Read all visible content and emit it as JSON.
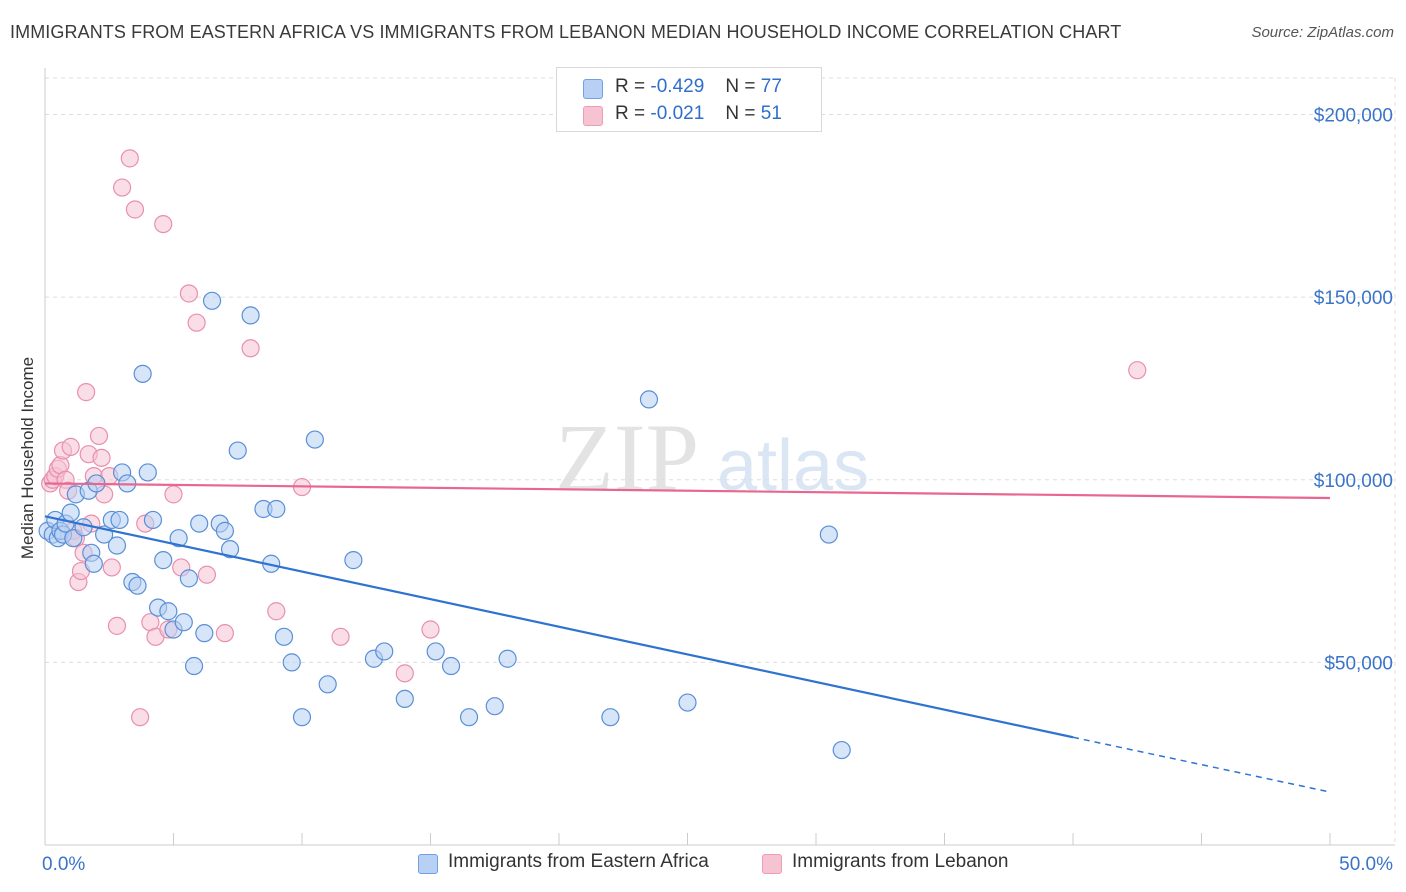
{
  "title": "IMMIGRANTS FROM EASTERN AFRICA VS IMMIGRANTS FROM LEBANON MEDIAN HOUSEHOLD INCOME CORRELATION CHART",
  "source": "Source: ZipAtlas.com",
  "watermark": {
    "zip": "ZIP",
    "atlas": "atlas"
  },
  "legend": {
    "r_label": "R =",
    "n_label": "N =",
    "rows": [
      {
        "r": "-0.429",
        "n": "77",
        "color": "#6fa0e8"
      },
      {
        "r": "-0.021",
        "n": "51",
        "color": "#f09ab6"
      }
    ]
  },
  "colors": {
    "blue_fill": "#b7d0f4",
    "blue_stroke": "#5a8fd6",
    "blue_line": "#2f73d1",
    "pink_fill": "#f6c3d3",
    "pink_stroke": "#e98fae",
    "pink_line": "#e8678f",
    "axis_label": "#3a74c9",
    "grid": "#dddddd"
  },
  "chart_data": {
    "type": "scatter",
    "title": "IMMIGRANTS FROM EASTERN AFRICA VS IMMIGRANTS FROM LEBANON MEDIAN HOUSEHOLD INCOME CORRELATION CHART",
    "xlabel": "",
    "ylabel": "Median Household Income",
    "xlim": [
      0,
      50
    ],
    "ylim": [
      0,
      210000
    ],
    "x_tick_labels": [
      "0.0%",
      "50.0%"
    ],
    "y_ticks": [
      50000,
      100000,
      150000,
      200000
    ],
    "y_tick_labels": [
      "$50,000",
      "$100,000",
      "$150,000",
      "$200,000"
    ],
    "grid": true,
    "legend_position": "top-center",
    "series": [
      {
        "name": "Immigrants from Eastern Africa",
        "r": -0.429,
        "n": 77,
        "trend": {
          "x0": 0,
          "y0": 90000,
          "x1": 40,
          "y1": 29500,
          "dashed_to_x": 50,
          "dashed_to_y": 14500
        },
        "points": [
          [
            0.1,
            86000
          ],
          [
            0.3,
            85000
          ],
          [
            0.4,
            89000
          ],
          [
            0.5,
            84000
          ],
          [
            0.6,
            86000
          ],
          [
            0.7,
            85000
          ],
          [
            0.8,
            88000
          ],
          [
            1.0,
            91000
          ],
          [
            1.1,
            84000
          ],
          [
            1.2,
            96000
          ],
          [
            1.5,
            87000
          ],
          [
            1.7,
            97000
          ],
          [
            1.8,
            80000
          ],
          [
            1.9,
            77000
          ],
          [
            2.0,
            99000
          ],
          [
            2.3,
            85000
          ],
          [
            2.6,
            89000
          ],
          [
            2.8,
            82000
          ],
          [
            2.9,
            89000
          ],
          [
            3.0,
            102000
          ],
          [
            3.2,
            99000
          ],
          [
            3.4,
            72000
          ],
          [
            3.6,
            71000
          ],
          [
            3.8,
            129000
          ],
          [
            4.0,
            102000
          ],
          [
            4.2,
            89000
          ],
          [
            4.4,
            65000
          ],
          [
            4.6,
            78000
          ],
          [
            4.8,
            64000
          ],
          [
            5.0,
            59000
          ],
          [
            5.2,
            84000
          ],
          [
            5.4,
            61000
          ],
          [
            5.6,
            73000
          ],
          [
            5.8,
            49000
          ],
          [
            6.0,
            88000
          ],
          [
            6.2,
            58000
          ],
          [
            6.5,
            149000
          ],
          [
            6.8,
            88000
          ],
          [
            7.0,
            86000
          ],
          [
            7.2,
            81000
          ],
          [
            7.5,
            108000
          ],
          [
            8.0,
            145000
          ],
          [
            8.5,
            92000
          ],
          [
            8.8,
            77000
          ],
          [
            9.0,
            92000
          ],
          [
            9.3,
            57000
          ],
          [
            9.6,
            50000
          ],
          [
            10.0,
            35000
          ],
          [
            10.5,
            111000
          ],
          [
            11.0,
            44000
          ],
          [
            12.0,
            78000
          ],
          [
            12.8,
            51000
          ],
          [
            13.2,
            53000
          ],
          [
            14.0,
            40000
          ],
          [
            15.2,
            53000
          ],
          [
            15.8,
            49000
          ],
          [
            16.5,
            35000
          ],
          [
            17.5,
            38000
          ],
          [
            18.0,
            51000
          ],
          [
            22.0,
            35000
          ],
          [
            23.5,
            122000
          ],
          [
            25.0,
            39000
          ],
          [
            30.5,
            85000
          ],
          [
            31.0,
            26000
          ]
        ]
      },
      {
        "name": "Immigrants from Lebanon",
        "r": -0.021,
        "n": 51,
        "trend": {
          "x0": 0,
          "y0": 99000,
          "x1": 50,
          "y1": 95000
        },
        "points": [
          [
            0.2,
            99000
          ],
          [
            0.3,
            100000
          ],
          [
            0.4,
            101000
          ],
          [
            0.5,
            103000
          ],
          [
            0.6,
            104000
          ],
          [
            0.7,
            108000
          ],
          [
            0.8,
            100000
          ],
          [
            0.9,
            97000
          ],
          [
            1.0,
            109000
          ],
          [
            1.1,
            86000
          ],
          [
            1.2,
            84000
          ],
          [
            1.3,
            72000
          ],
          [
            1.4,
            75000
          ],
          [
            1.5,
            80000
          ],
          [
            1.6,
            124000
          ],
          [
            1.7,
            107000
          ],
          [
            1.8,
            88000
          ],
          [
            1.9,
            101000
          ],
          [
            2.1,
            112000
          ],
          [
            2.2,
            106000
          ],
          [
            2.3,
            96000
          ],
          [
            2.5,
            101000
          ],
          [
            2.6,
            76000
          ],
          [
            2.8,
            60000
          ],
          [
            3.0,
            180000
          ],
          [
            3.3,
            188000
          ],
          [
            3.5,
            174000
          ],
          [
            3.7,
            35000
          ],
          [
            3.9,
            88000
          ],
          [
            4.1,
            61000
          ],
          [
            4.3,
            57000
          ],
          [
            4.6,
            170000
          ],
          [
            4.8,
            59000
          ],
          [
            5.0,
            96000
          ],
          [
            5.3,
            76000
          ],
          [
            5.6,
            151000
          ],
          [
            5.9,
            143000
          ],
          [
            6.3,
            74000
          ],
          [
            7.0,
            58000
          ],
          [
            8.0,
            136000
          ],
          [
            9.0,
            64000
          ],
          [
            10.0,
            98000
          ],
          [
            11.5,
            57000
          ],
          [
            14.0,
            47000
          ],
          [
            15.0,
            59000
          ],
          [
            42.5,
            130000
          ]
        ]
      }
    ]
  }
}
